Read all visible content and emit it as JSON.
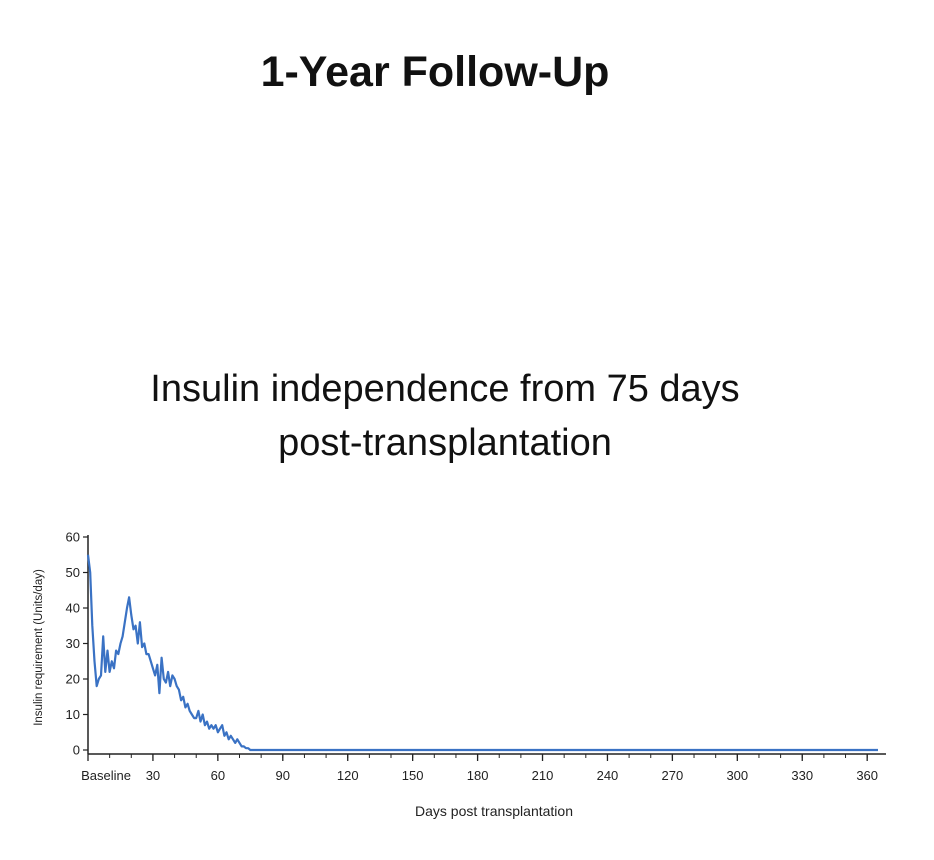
{
  "slide": {
    "title": "1-Year Follow-Up",
    "subtitle_line1": "Insulin independence from 75 days",
    "subtitle_line2": "post-transplantation"
  },
  "chart_data": {
    "type": "line",
    "title": "",
    "xlabel": "Days post transplantation",
    "ylabel": "Insulin requirement (Units/day)",
    "xlim": [
      0,
      365
    ],
    "ylim": [
      0,
      60
    ],
    "x_ticks": [
      0,
      30,
      60,
      90,
      120,
      150,
      180,
      210,
      240,
      270,
      300,
      330,
      360
    ],
    "x_tick_labels": [
      "Baseline",
      "30",
      "60",
      "90",
      "120",
      "150",
      "180",
      "210",
      "240",
      "270",
      "300",
      "330",
      "360"
    ],
    "y_ticks": [
      0,
      10,
      20,
      30,
      40,
      50,
      60
    ],
    "y_tick_labels": [
      "0",
      "10",
      "20",
      "30",
      "40",
      "50",
      "60"
    ],
    "grid": false,
    "line_color": "#3a72c4",
    "series": [
      {
        "x": [
          0,
          1,
          2,
          3,
          4,
          5,
          6,
          7,
          8,
          9,
          10,
          11,
          12,
          13,
          14,
          15,
          16,
          17,
          18,
          19,
          20,
          21,
          22,
          23,
          24,
          25,
          26,
          27,
          28,
          29,
          30,
          31,
          32,
          33,
          34,
          35,
          36,
          37,
          38,
          39,
          40,
          41,
          42,
          43,
          44,
          45,
          46,
          47,
          48,
          49,
          50,
          51,
          52,
          53,
          54,
          55,
          56,
          57,
          58,
          59,
          60,
          61,
          62,
          63,
          64,
          65,
          66,
          67,
          68,
          69,
          70,
          71,
          72,
          73,
          74,
          75,
          80,
          100,
          150,
          200,
          250,
          300,
          350,
          365
        ],
        "y": [
          55,
          50,
          35,
          25,
          18,
          20,
          21,
          32,
          22,
          28,
          22,
          25,
          23,
          28,
          27,
          30,
          32,
          36,
          40,
          43,
          38,
          34,
          35,
          30,
          36,
          29,
          30,
          27,
          27,
          25,
          23,
          21,
          24,
          16,
          26,
          20,
          19,
          22,
          18,
          21,
          20,
          18,
          17,
          14,
          15,
          12,
          13,
          11,
          10,
          9,
          9,
          11,
          8,
          10,
          7,
          8,
          6,
          7,
          6,
          7,
          5,
          6,
          7,
          4,
          5,
          3,
          4,
          3,
          2,
          3,
          2,
          1,
          1,
          0.5,
          0.5,
          0,
          0,
          0,
          0,
          0,
          0,
          0,
          0,
          0
        ]
      }
    ]
  }
}
